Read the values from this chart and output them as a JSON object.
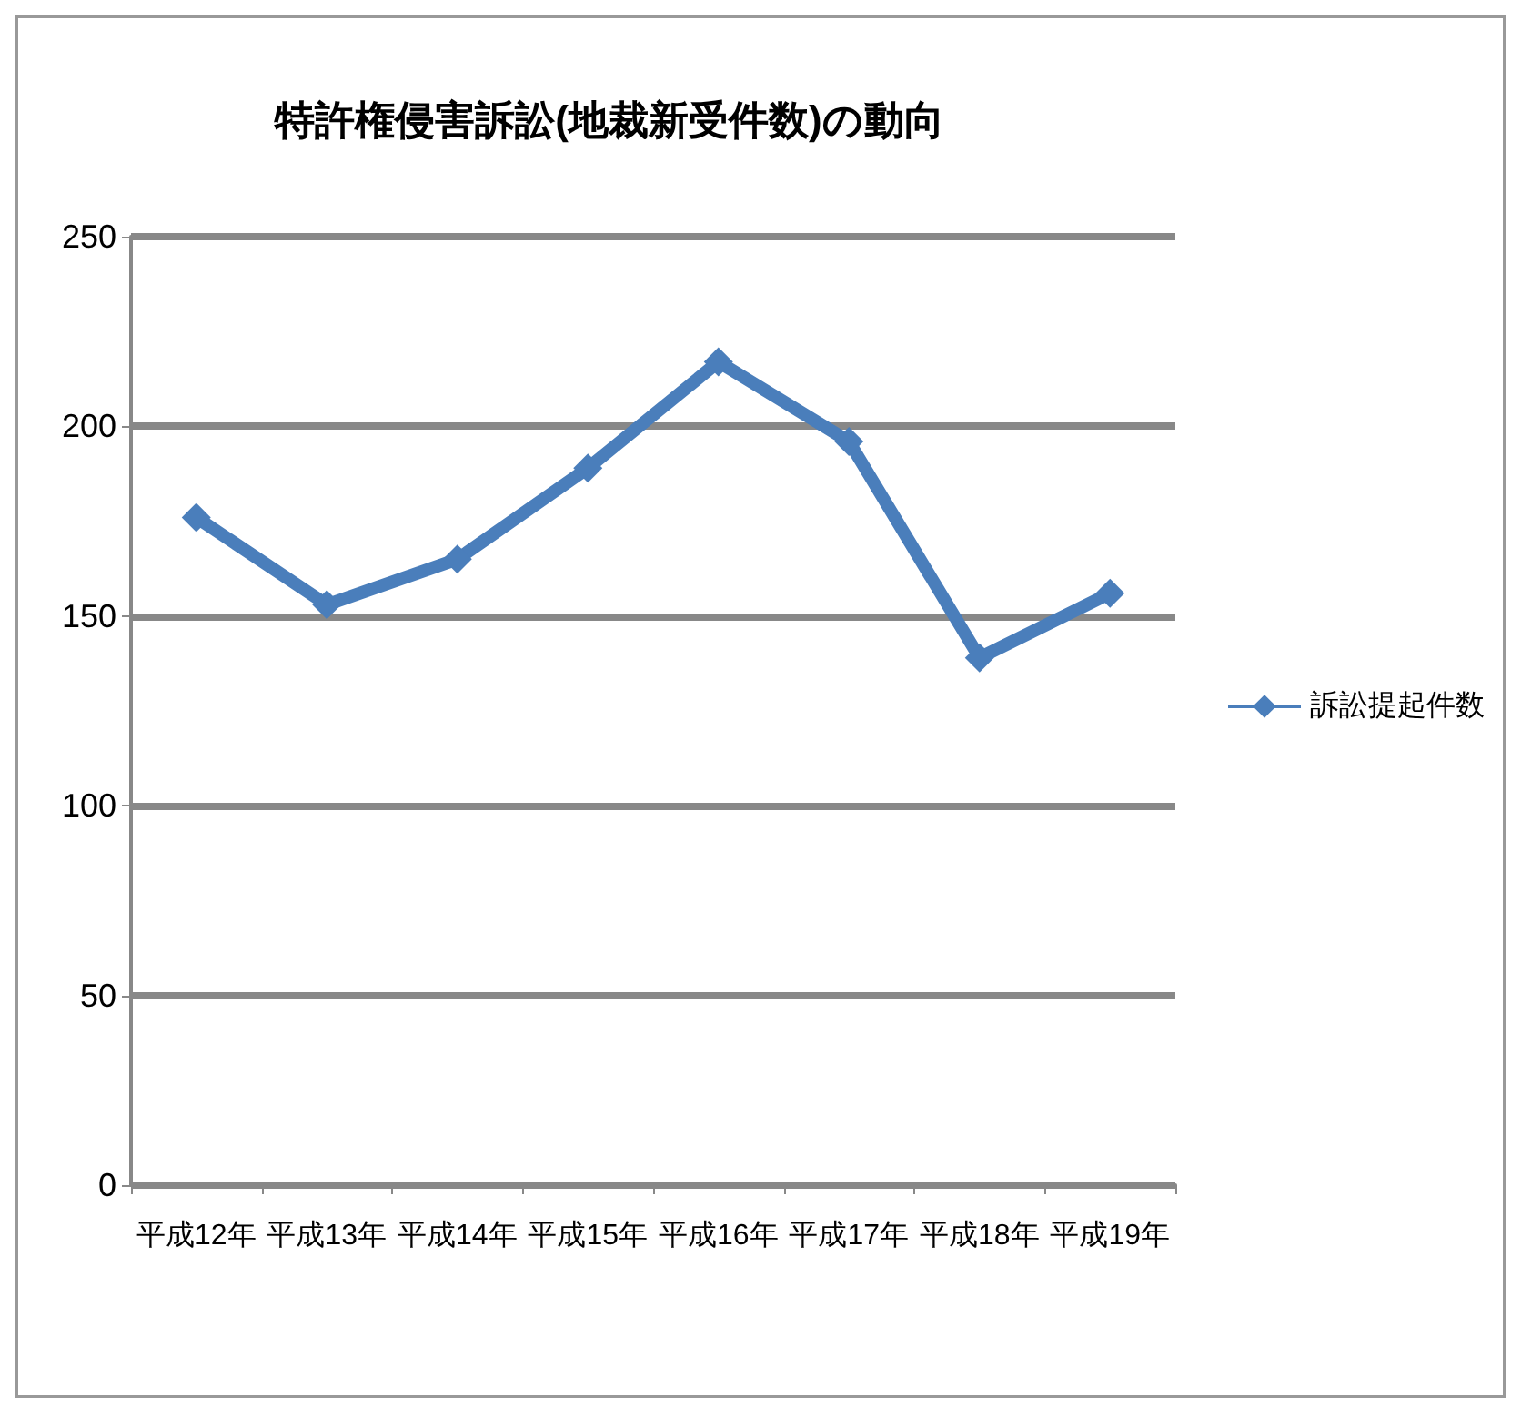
{
  "chart_data": {
    "type": "line",
    "title": "特許権侵害訴訟(地裁新受件数)の動向",
    "categories": [
      "平成12年",
      "平成13年",
      "平成14年",
      "平成15年",
      "平成16年",
      "平成17年",
      "平成18年",
      "平成19年"
    ],
    "series": [
      {
        "name": "訴訟提起件数",
        "color": "#4a7ebb",
        "values": [
          176,
          153,
          165,
          189,
          217,
          196,
          139,
          156
        ]
      }
    ],
    "ylim": [
      0,
      250
    ],
    "yticks": [
      0,
      50,
      100,
      150,
      200,
      250
    ],
    "grid": "y",
    "legend": "right",
    "marker": "diamond"
  }
}
